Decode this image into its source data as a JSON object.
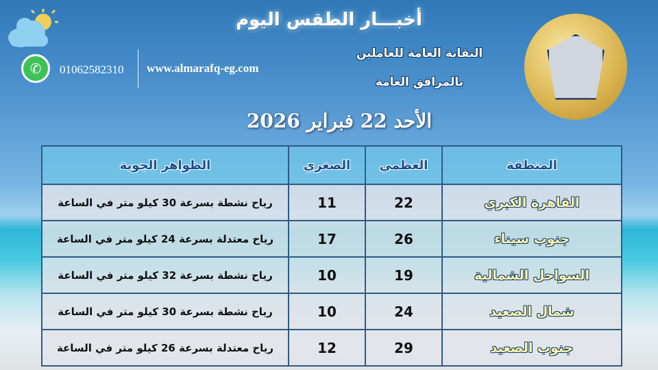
{
  "header": {
    "title": "أخبـــار الطقس اليوم",
    "org_line1": "النقابة العامة للعاملين",
    "org_line2": "بالمرافق العامة",
    "date": "الأحد 22 فبراير 2026",
    "phone": "01062582310",
    "website": "www.almarafq-eg.com",
    "icons": [
      "partly-cloudy-icon",
      "whatsapp-icon",
      "union-logo"
    ]
  },
  "table": {
    "headers": [
      "المنطقة",
      "العظمي",
      "الصغري",
      "الظواهر الجوية"
    ],
    "rows": [
      {
        "region": "القاهرة الكبري",
        "max": "22",
        "min": "11",
        "desc": "رياح نشطة بسرعة 30 كيلو متر في الساعة"
      },
      {
        "region": "جنوب سيناء",
        "max": "26",
        "min": "17",
        "desc": "رياح معتدلة بسرعة 24 كيلو متر في الساعة"
      },
      {
        "region": "السواحل الشمالية",
        "max": "19",
        "min": "10",
        "desc": "رياح نشطة بسرعة 32 كيلو متر في الساعة"
      },
      {
        "region": "شمال الصعيد",
        "max": "24",
        "min": "10",
        "desc": "رياح نشطة بسرعة 30 كيلو متر في الساعة"
      },
      {
        "region": "جنوب الصعيد",
        "max": "29",
        "min": "12",
        "desc": "رياح معتدلة بسرعة 26 كيلو متر في الساعة"
      }
    ]
  }
}
